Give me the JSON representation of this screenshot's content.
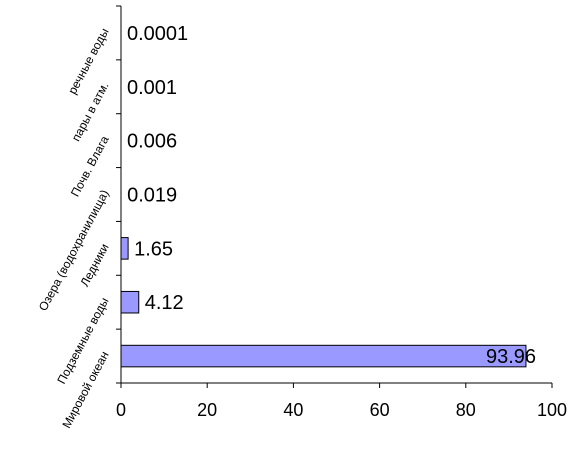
{
  "chart_data": {
    "type": "bar",
    "orientation": "horizontal",
    "categories": [
      "Мировой океан",
      "Подземные воды",
      "Ледники",
      "Озера (водохранилища)",
      "Почв. Влага",
      "пары в атм.",
      "речные воды"
    ],
    "values": [
      93.96,
      4.12,
      1.65,
      0.019,
      0.006,
      0.001,
      0.0001
    ],
    "value_labels": [
      "93.96",
      "4.12",
      "1.65",
      "0.019",
      "0.006",
      "0.001",
      "0.0001"
    ],
    "xticks": [
      "0",
      "20",
      "40",
      "60",
      "80",
      "100"
    ],
    "xlim": [
      0,
      100
    ],
    "bar_color": "#9999ff",
    "bar_stroke": "#000000",
    "grid": false,
    "legend": "none"
  }
}
